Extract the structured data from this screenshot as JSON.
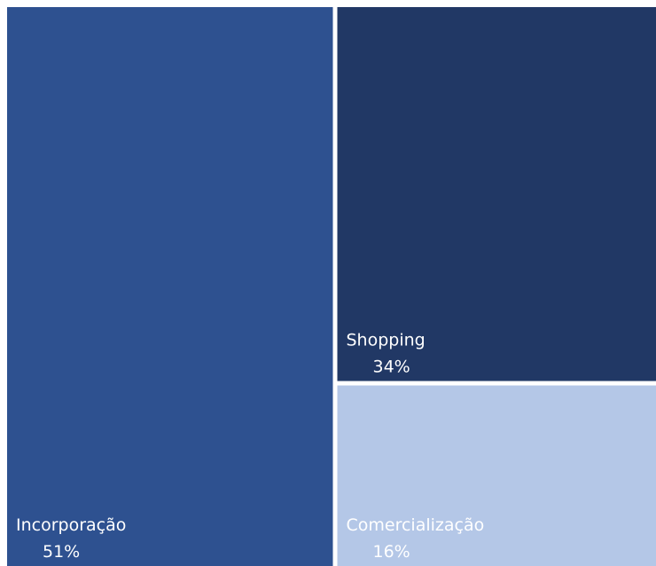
{
  "chart_data": {
    "type": "treemap",
    "items": [
      {
        "name": "Incorporação",
        "value": 51,
        "label": "51%",
        "color": "#2e5190"
      },
      {
        "name": "Shopping",
        "value": 34,
        "label": "34%",
        "color": "#213865"
      },
      {
        "name": "Comercialização",
        "value": 16,
        "label": "16%",
        "color": "#b4c7e7"
      }
    ]
  }
}
